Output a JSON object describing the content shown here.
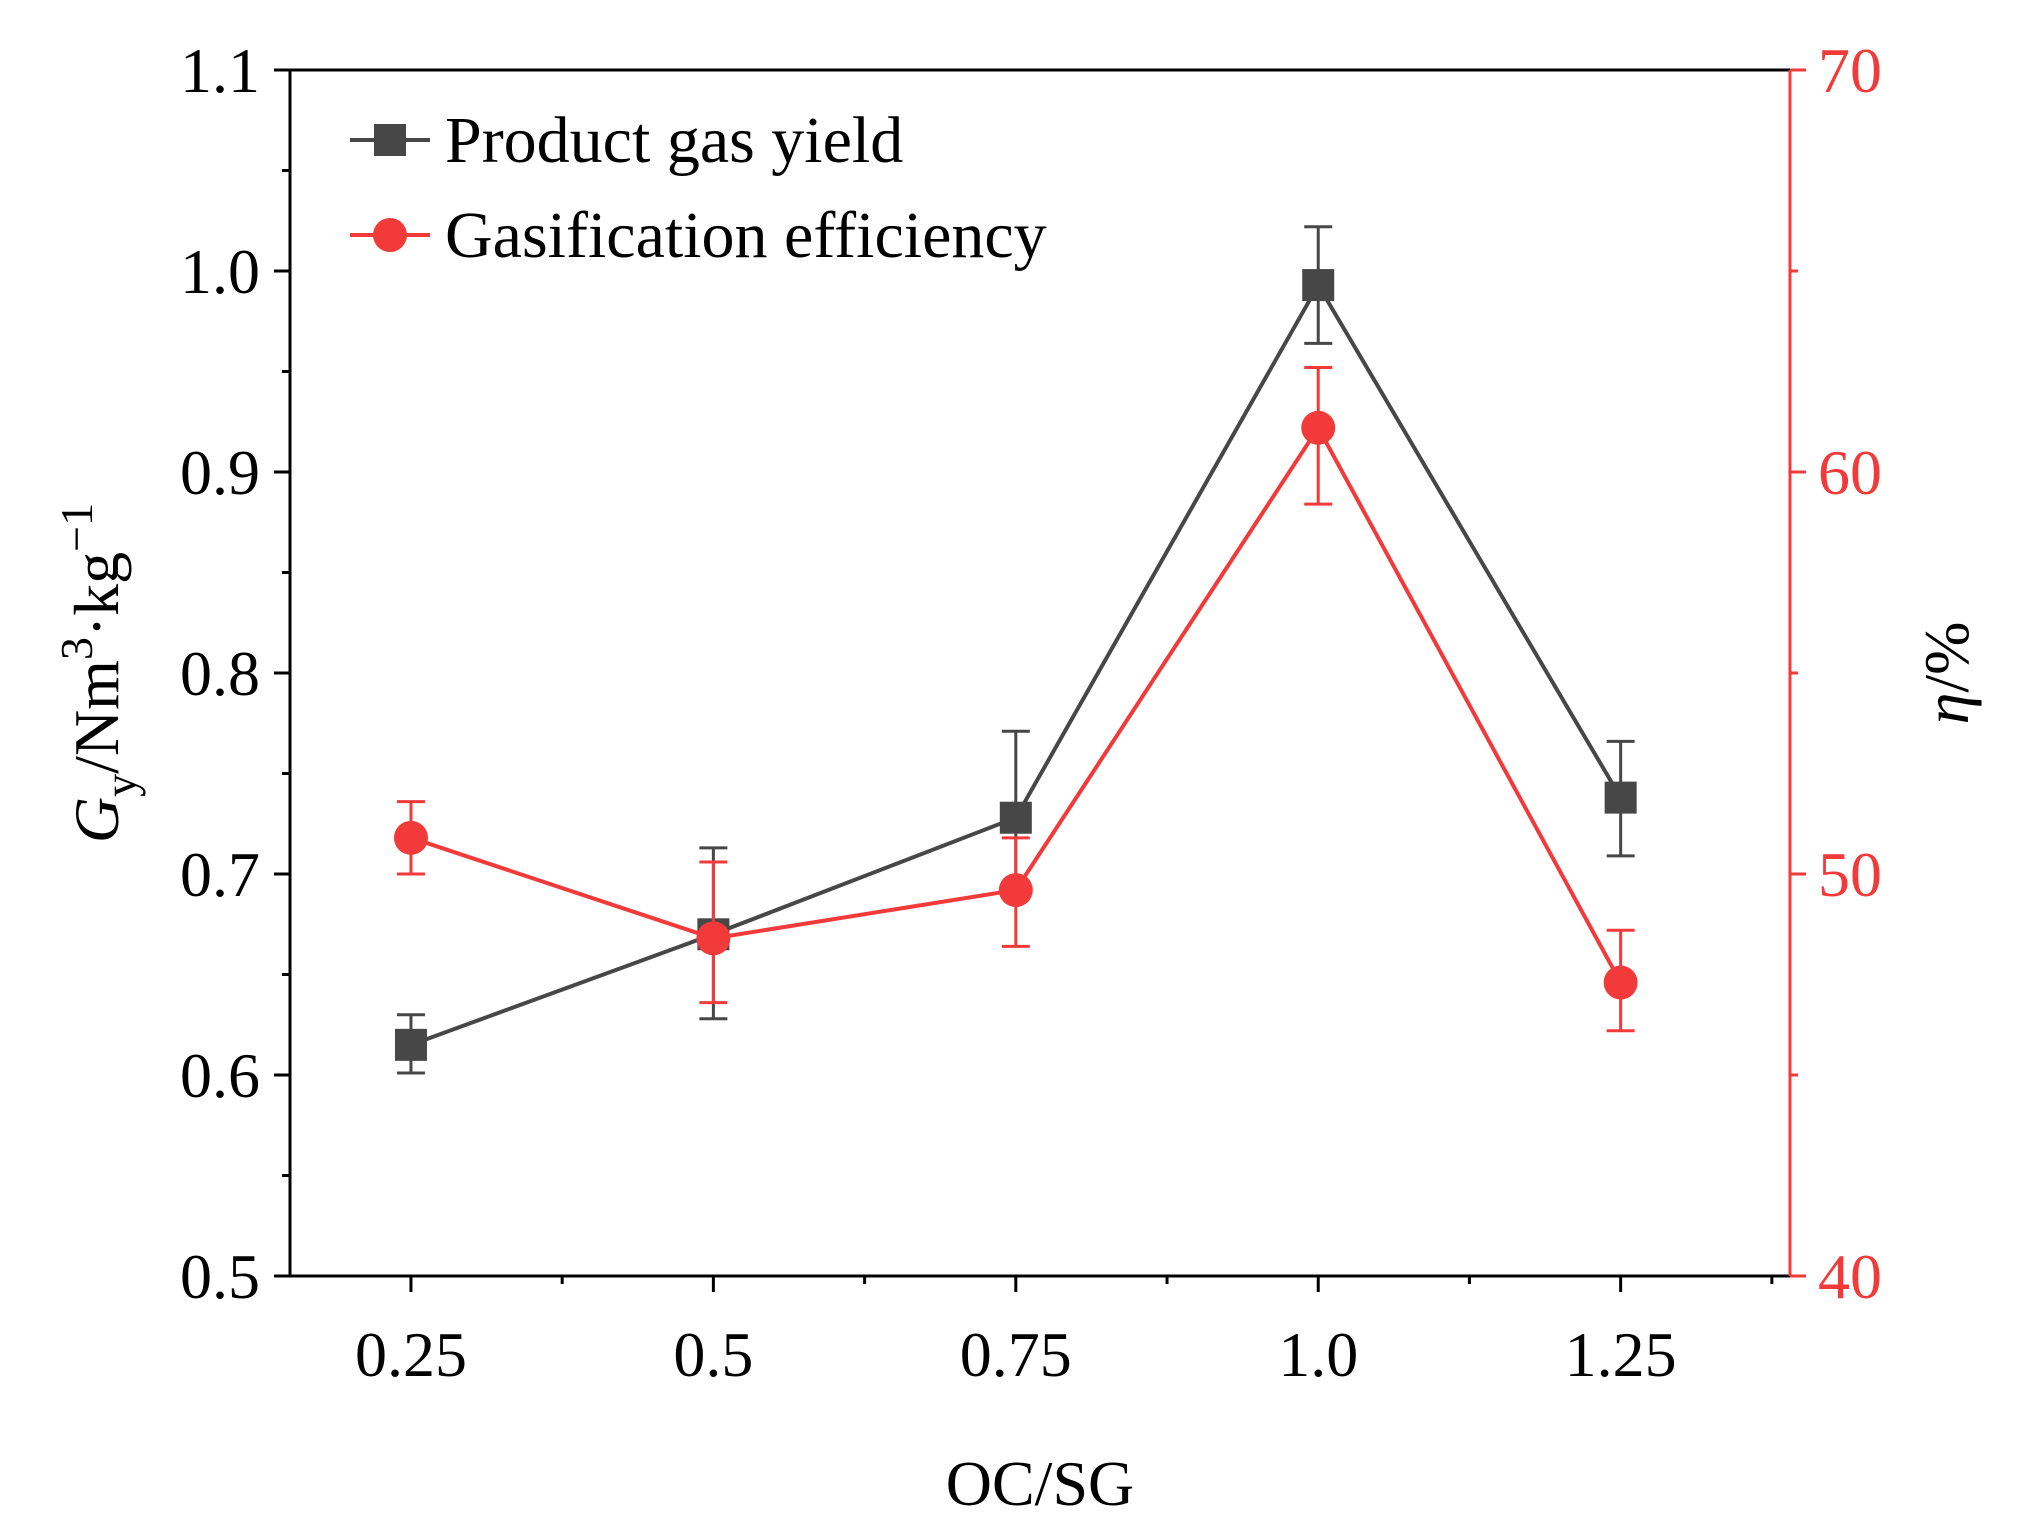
{
  "chart_data": {
    "type": "line",
    "xlabel": "OC/SG",
    "ylabel_left": {
      "symbol": "G",
      "subscript": "y",
      "unit_prefix": "/Nm",
      "unit_sup": "3",
      "unit_mid": "·kg",
      "unit_sup2": "−1"
    },
    "ylabel_right": "η/%",
    "categories": [
      0.25,
      0.5,
      0.75,
      1.0,
      1.25
    ],
    "x_tick_labels": [
      "0.25",
      "0.5",
      "0.75",
      "1.0",
      "1.25"
    ],
    "xlim": [
      0.15,
      1.39
    ],
    "ylim_left": [
      0.5,
      1.1
    ],
    "ylim_right": [
      40,
      70
    ],
    "y_left_ticks": [
      0.5,
      0.6,
      0.7,
      0.8,
      0.9,
      1.0,
      1.1
    ],
    "y_left_tick_labels": [
      "0.5",
      "0.6",
      "0.7",
      "0.8",
      "0.9",
      "1.0",
      "1.1"
    ],
    "y_right_ticks": [
      40,
      50,
      60,
      70
    ],
    "y_right_tick_labels": [
      "40",
      "50",
      "60",
      "70"
    ],
    "legend_position": "top-left",
    "grid": false,
    "series": [
      {
        "name": "Product gas yield",
        "axis": "left",
        "marker": "square",
        "color": "#474747",
        "values": [
          0.615,
          0.67,
          0.728,
          0.993,
          0.738
        ],
        "err_upper": [
          0.63,
          0.713,
          0.771,
          1.022,
          0.766
        ],
        "err_lower": [
          0.601,
          0.628,
          0.69,
          0.964,
          0.709
        ]
      },
      {
        "name": "Gasification efficiency",
        "axis": "right",
        "marker": "circle",
        "color": "#f23a3a",
        "values": [
          50.9,
          48.4,
          49.6,
          61.1,
          47.3
        ],
        "err_upper": [
          51.8,
          50.3,
          50.9,
          62.6,
          48.6
        ],
        "err_lower": [
          50.0,
          46.8,
          48.2,
          59.2,
          46.1
        ]
      }
    ]
  },
  "colors": {
    "axis": "#000000",
    "right_axis": "#f23a3a"
  }
}
